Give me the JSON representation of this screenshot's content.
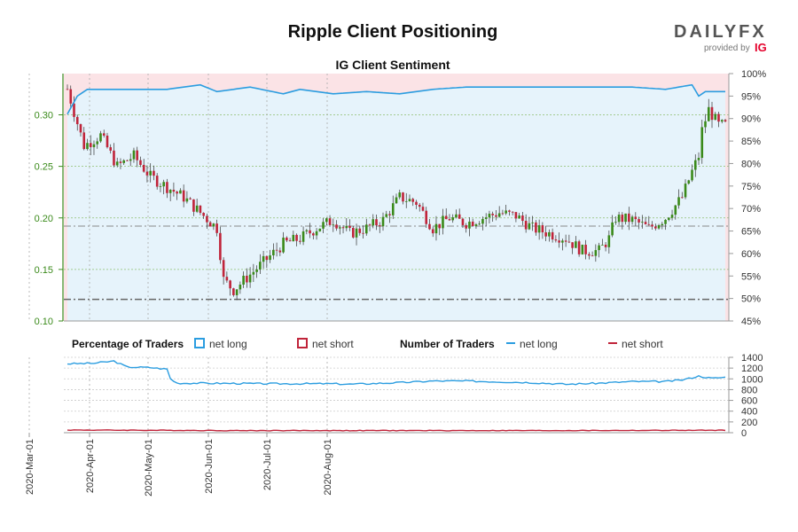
{
  "title": "Ripple Client Positioning",
  "subtitle": "IG Client Sentiment",
  "brand": {
    "logo_text": "DAILYFX",
    "provided_by": "provided by",
    "ig_logo": "IG",
    "colors": {
      "text": "#555555",
      "ig": "#e4002b"
    }
  },
  "legend": {
    "pct_heading": "Percentage of Traders",
    "pct_long": "net long",
    "pct_short": "net short",
    "num_heading": "Number of Traders",
    "num_long": "net long",
    "num_short": "net short"
  },
  "colors": {
    "long": "#2b9de0",
    "short": "#c0243a",
    "long_fill": "#e6f3fb",
    "short_fill": "#fbe3e6",
    "up_candle": "#3a8a1a",
    "down_candle": "#c0243a",
    "price_axis": "#3a8a1a"
  },
  "x_dates": [
    "2020-Mar-01",
    "2020-Apr-01",
    "2020-May-01",
    "2020-Jun-01",
    "2020-Jul-01",
    "2020-Aug-01"
  ],
  "chart_data": [
    {
      "type": "candlestick",
      "name": "price",
      "yaxis_left": {
        "ticks": [
          "0.10",
          "0.15",
          "0.20",
          "0.25",
          "0.30"
        ],
        "range": [
          0.1,
          0.34
        ]
      },
      "yaxis_right": {
        "ticks": [
          "45%",
          "50%",
          "55%",
          "60%",
          "65%",
          "70%",
          "75%",
          "80%",
          "85%",
          "90%",
          "95%",
          "100%"
        ],
        "range": [
          45,
          100
        ]
      },
      "reference_levels": [
        0.192,
        0.121
      ],
      "price_path": [
        [
          0,
          0.325
        ],
        [
          5,
          0.27
        ],
        [
          10,
          0.28
        ],
        [
          15,
          0.25
        ],
        [
          20,
          0.26
        ],
        [
          25,
          0.24
        ],
        [
          30,
          0.23
        ],
        [
          35,
          0.22
        ],
        [
          40,
          0.205
        ],
        [
          45,
          0.19
        ],
        [
          47,
          0.14
        ],
        [
          50,
          0.13
        ],
        [
          55,
          0.145
        ],
        [
          60,
          0.16
        ],
        [
          65,
          0.175
        ],
        [
          70,
          0.18
        ],
        [
          75,
          0.19
        ],
        [
          80,
          0.198
        ],
        [
          85,
          0.185
        ],
        [
          90,
          0.19
        ],
        [
          95,
          0.198
        ],
        [
          100,
          0.22
        ],
        [
          105,
          0.215
        ],
        [
          110,
          0.19
        ],
        [
          115,
          0.2
        ],
        [
          120,
          0.195
        ],
        [
          125,
          0.2
        ],
        [
          130,
          0.205
        ],
        [
          135,
          0.202
        ],
        [
          140,
          0.19
        ],
        [
          145,
          0.185
        ],
        [
          150,
          0.18
        ],
        [
          155,
          0.168
        ],
        [
          160,
          0.168
        ],
        [
          163,
          0.18
        ],
        [
          165,
          0.2
        ],
        [
          170,
          0.198
        ],
        [
          175,
          0.19
        ],
        [
          180,
          0.2
        ],
        [
          185,
          0.22
        ],
        [
          188,
          0.245
        ],
        [
          190,
          0.26
        ],
        [
          191,
          0.285
        ],
        [
          193,
          0.305
        ],
        [
          196,
          0.29
        ],
        [
          198,
          0.29
        ]
      ],
      "sentiment_long_pct_path": [
        [
          0,
          91
        ],
        [
          3,
          95
        ],
        [
          6,
          96.5
        ],
        [
          20,
          96.5
        ],
        [
          30,
          96.5
        ],
        [
          40,
          97.5
        ],
        [
          45,
          96
        ],
        [
          55,
          97
        ],
        [
          65,
          95.5
        ],
        [
          70,
          96.5
        ],
        [
          80,
          95.5
        ],
        [
          90,
          96
        ],
        [
          100,
          95.5
        ],
        [
          110,
          96.5
        ],
        [
          120,
          97
        ],
        [
          130,
          97
        ],
        [
          140,
          97
        ],
        [
          150,
          97
        ],
        [
          160,
          97
        ],
        [
          170,
          97
        ],
        [
          180,
          96.5
        ],
        [
          188,
          97.5
        ],
        [
          190,
          95
        ],
        [
          192,
          96
        ],
        [
          195,
          96
        ],
        [
          198,
          96
        ]
      ]
    },
    {
      "type": "line",
      "name": "number_of_traders",
      "yaxis_right": {
        "ticks": [
          "0",
          "200",
          "400",
          "600",
          "800",
          "1000",
          "1200",
          "1400"
        ],
        "range": [
          0,
          1400
        ]
      },
      "series": [
        {
          "name": "net long",
          "points": [
            [
              0,
              1280
            ],
            [
              8,
              1290
            ],
            [
              14,
              1330
            ],
            [
              18,
              1220
            ],
            [
              25,
              1210
            ],
            [
              30,
              1180
            ],
            [
              31,
              1000
            ],
            [
              33,
              920
            ],
            [
              40,
              920
            ],
            [
              60,
              910
            ],
            [
              80,
              910
            ],
            [
              85,
              900
            ],
            [
              100,
              930
            ],
            [
              110,
              960
            ],
            [
              120,
              960
            ],
            [
              140,
              930
            ],
            [
              150,
              900
            ],
            [
              160,
              920
            ],
            [
              170,
              950
            ],
            [
              180,
              950
            ],
            [
              185,
              980
            ],
            [
              190,
              1050
            ],
            [
              194,
              1010
            ],
            [
              198,
              1030
            ]
          ]
        },
        {
          "name": "net short",
          "points": [
            [
              0,
              50
            ],
            [
              50,
              40
            ],
            [
              100,
              40
            ],
            [
              150,
              40
            ],
            [
              198,
              45
            ]
          ]
        }
      ]
    }
  ]
}
